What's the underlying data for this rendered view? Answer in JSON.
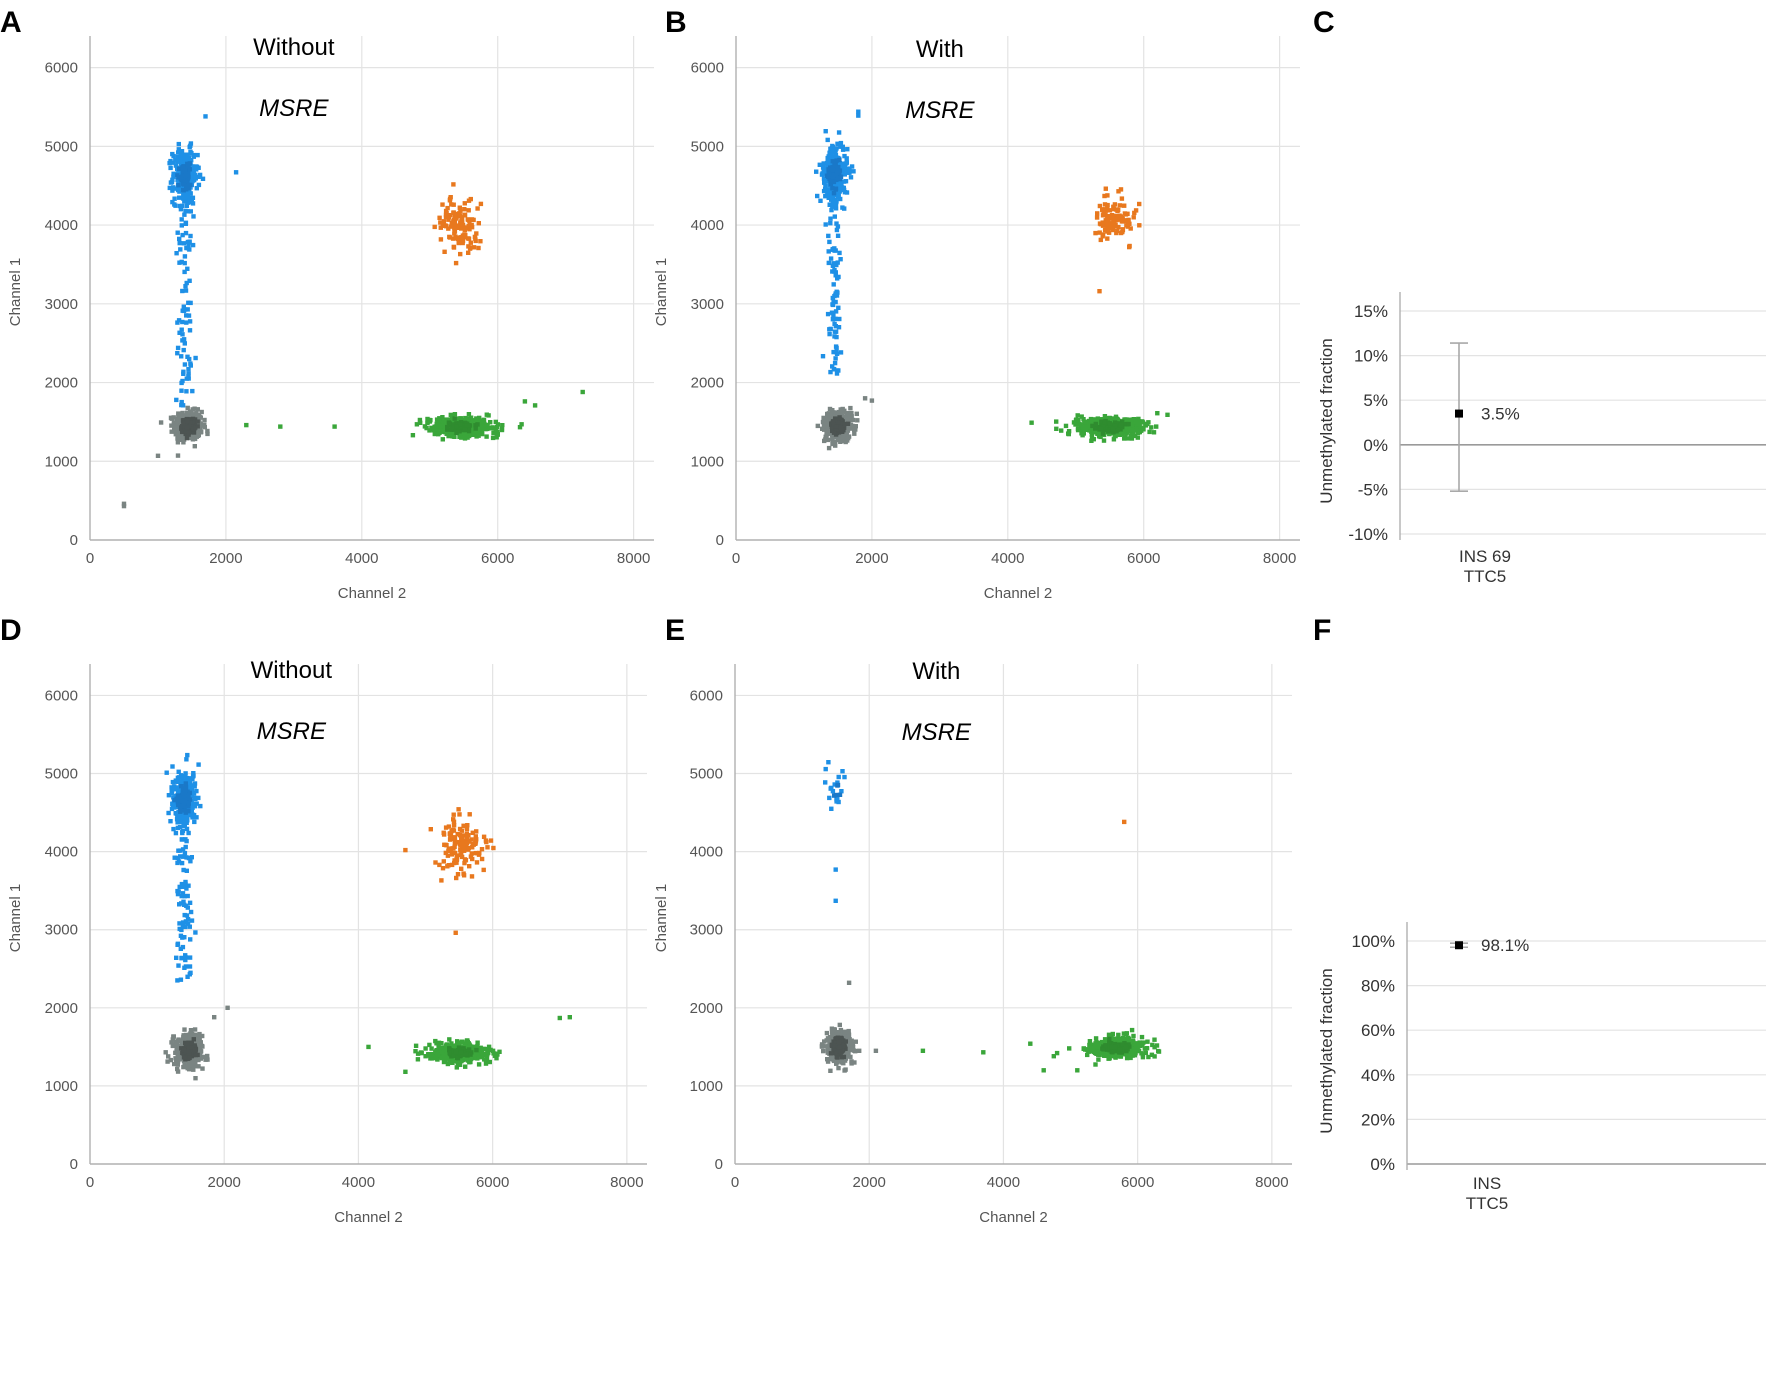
{
  "colors": {
    "ch1_positive": "#1e90e6",
    "double_positive": "#e8781e",
    "ch2_positive": "#3aa63a",
    "negative": "#7a8482",
    "negative_core": "#4d5452",
    "fraction_marker": "#000000",
    "error_bar": "#a9a9a9"
  },
  "chart_data": [
    {
      "panel": "A",
      "type": "scatter",
      "annotation_top": "Without",
      "annotation_italic": "MSRE",
      "xlabel": "Channel 2",
      "ylabel": "Channel 1",
      "xlim": [
        0,
        8300
      ],
      "ylim": [
        0,
        6300
      ],
      "xticks": [
        "0",
        "2000",
        "4000",
        "6000",
        "8000"
      ],
      "yticks": [
        "0",
        "1000",
        "2000",
        "3000",
        "4000",
        "5000",
        "6000"
      ],
      "clusters": [
        {
          "name": "negative",
          "center": [
            1450,
            1450
          ],
          "spread": [
            100,
            90
          ],
          "count": 420
        },
        {
          "name": "ch1_positive",
          "center": [
            1400,
            4620
          ],
          "spread": [
            90,
            170
          ],
          "count": 260,
          "tail_to": 1700
        },
        {
          "name": "double_positive",
          "center": [
            5450,
            3990
          ],
          "spread": [
            160,
            170
          ],
          "count": 130
        },
        {
          "name": "ch2_positive",
          "center": [
            5450,
            1440
          ],
          "spread": [
            230,
            60
          ],
          "count": 420
        }
      ],
      "outliers": [
        {
          "cluster": "ch1_positive",
          "x": 1700,
          "y": 5380
        },
        {
          "cluster": "ch1_positive",
          "x": 2150,
          "y": 4670
        },
        {
          "cluster": "ch2_positive",
          "x": 2300,
          "y": 1460
        },
        {
          "cluster": "ch2_positive",
          "x": 2800,
          "y": 1440
        },
        {
          "cluster": "ch2_positive",
          "x": 3600,
          "y": 1440
        },
        {
          "cluster": "ch2_positive",
          "x": 6400,
          "y": 1760
        },
        {
          "cluster": "ch2_positive",
          "x": 6550,
          "y": 1710
        },
        {
          "cluster": "ch2_positive",
          "x": 7250,
          "y": 1880
        },
        {
          "cluster": "negative",
          "x": 1000,
          "y": 1070
        },
        {
          "cluster": "negative",
          "x": 500,
          "y": 430
        },
        {
          "cluster": "negative",
          "x": 500,
          "y": 460
        }
      ]
    },
    {
      "panel": "B",
      "type": "scatter",
      "annotation_top": "With",
      "annotation_italic": "MSRE",
      "xlabel": "Channel 2",
      "ylabel": "Channel 1",
      "xlim": [
        0,
        8300
      ],
      "ylim": [
        0,
        6300
      ],
      "xticks": [
        "0",
        "2000",
        "4000",
        "6000",
        "8000"
      ],
      "yticks": [
        "0",
        "1000",
        "2000",
        "3000",
        "4000",
        "5000",
        "6000"
      ],
      "clusters": [
        {
          "name": "negative",
          "center": [
            1500,
            1450
          ],
          "spread": [
            100,
            90
          ],
          "count": 380
        },
        {
          "name": "ch1_positive",
          "center": [
            1450,
            4640
          ],
          "spread": [
            90,
            170
          ],
          "count": 260,
          "tail_to": 2100
        },
        {
          "name": "double_positive",
          "center": [
            5550,
            4070
          ],
          "spread": [
            150,
            160
          ],
          "count": 120
        },
        {
          "name": "ch2_positive",
          "center": [
            5500,
            1440
          ],
          "spread": [
            230,
            60
          ],
          "count": 420
        }
      ],
      "outliers": [
        {
          "cluster": "ch1_positive",
          "x": 1800,
          "y": 5440
        },
        {
          "cluster": "ch1_positive",
          "x": 1800,
          "y": 5390
        },
        {
          "cluster": "negative",
          "x": 2000,
          "y": 1770
        },
        {
          "cluster": "negative",
          "x": 1900,
          "y": 1800
        },
        {
          "cluster": "ch2_positive",
          "x": 4350,
          "y": 1490
        },
        {
          "cluster": "ch2_positive",
          "x": 6200,
          "y": 1610
        },
        {
          "cluster": "ch2_positive",
          "x": 6350,
          "y": 1590
        },
        {
          "cluster": "double_positive",
          "x": 5350,
          "y": 3160
        }
      ]
    },
    {
      "panel": "C",
      "type": "scatter",
      "ylabel": "Unmethylated fraction",
      "yticks": [
        "15%",
        "10%",
        "5%",
        "0%",
        "-5%",
        "-10%"
      ],
      "ylim": [
        -11.5,
        17
      ],
      "categories": [
        "INS 69",
        "TTC5"
      ],
      "points": [
        {
          "value": 3.5,
          "label": "3.5%",
          "error_low": -5.2,
          "error_high": 11.4
        }
      ]
    },
    {
      "panel": "D",
      "type": "scatter",
      "annotation_top": "Without",
      "annotation_italic": "MSRE",
      "xlabel": "Channel 2",
      "ylabel": "Channel 1",
      "xlim": [
        0,
        8300
      ],
      "ylim": [
        0,
        6300
      ],
      "xticks": [
        "0",
        "2000",
        "4000",
        "6000",
        "8000"
      ],
      "yticks": [
        "0",
        "1000",
        "2000",
        "3000",
        "4000",
        "5000",
        "6000"
      ],
      "clusters": [
        {
          "name": "negative",
          "center": [
            1480,
            1460
          ],
          "spread": [
            100,
            100
          ],
          "count": 400
        },
        {
          "name": "ch1_positive",
          "center": [
            1400,
            4680
          ],
          "spread": [
            90,
            170
          ],
          "count": 270,
          "tail_to": 2350
        },
        {
          "name": "double_positive",
          "center": [
            5550,
            4070
          ],
          "spread": [
            170,
            170
          ],
          "count": 140
        },
        {
          "name": "ch2_positive",
          "center": [
            5500,
            1430
          ],
          "spread": [
            230,
            60
          ],
          "count": 420
        }
      ],
      "outliers": [
        {
          "cluster": "double_positive",
          "x": 4700,
          "y": 4020
        },
        {
          "cluster": "negative",
          "x": 2050,
          "y": 2000
        },
        {
          "cluster": "negative",
          "x": 1850,
          "y": 1880
        },
        {
          "cluster": "ch2_positive",
          "x": 4150,
          "y": 1500
        },
        {
          "cluster": "ch2_positive",
          "x": 7000,
          "y": 1870
        },
        {
          "cluster": "ch2_positive",
          "x": 7150,
          "y": 1880
        },
        {
          "cluster": "ch2_positive",
          "x": 4700,
          "y": 1180
        },
        {
          "cluster": "double_positive",
          "x": 5450,
          "y": 2960
        }
      ]
    },
    {
      "panel": "E",
      "type": "scatter",
      "annotation_top": "With",
      "annotation_italic": "MSRE",
      "xlabel": "Channel 2",
      "ylabel": "Channel 1",
      "xlim": [
        0,
        8300
      ],
      "ylim": [
        0,
        6300
      ],
      "xticks": [
        "0",
        "2000",
        "4000",
        "6000",
        "8000"
      ],
      "yticks": [
        "0",
        "1000",
        "2000",
        "3000",
        "4000",
        "5000",
        "6000"
      ],
      "clusters": [
        {
          "name": "negative",
          "center": [
            1550,
            1500
          ],
          "spread": [
            95,
            100
          ],
          "count": 380
        },
        {
          "name": "ch1_positive",
          "center": [
            1500,
            4780
          ],
          "spread": [
            80,
            120
          ],
          "count": 18
        },
        {
          "name": "ch2_positive",
          "center": [
            5700,
            1490
          ],
          "spread": [
            220,
            65
          ],
          "count": 380
        }
      ],
      "outliers": [
        {
          "cluster": "ch1_positive",
          "x": 1500,
          "y": 3770
        },
        {
          "cluster": "ch1_positive",
          "x": 1500,
          "y": 3370
        },
        {
          "cluster": "negative",
          "x": 1700,
          "y": 2320
        },
        {
          "cluster": "negative",
          "x": 2100,
          "y": 1450
        },
        {
          "cluster": "negative",
          "x": 1850,
          "y": 1450
        },
        {
          "cluster": "double_positive",
          "x": 5800,
          "y": 4380
        },
        {
          "cluster": "ch2_positive",
          "x": 2800,
          "y": 1450
        },
        {
          "cluster": "ch2_positive",
          "x": 3700,
          "y": 1430
        },
        {
          "cluster": "ch2_positive",
          "x": 4400,
          "y": 1540
        },
        {
          "cluster": "ch2_positive",
          "x": 4800,
          "y": 1420
        },
        {
          "cluster": "ch2_positive",
          "x": 4600,
          "y": 1200
        },
        {
          "cluster": "ch2_positive",
          "x": 5100,
          "y": 1200
        },
        {
          "cluster": "ch2_positive",
          "x": 4750,
          "y": 1380
        }
      ]
    },
    {
      "panel": "F",
      "type": "scatter",
      "ylabel": "Unmethylated fraction",
      "yticks": [
        "100%",
        "80%",
        "60%",
        "40%",
        "20%",
        "0%"
      ],
      "ylim": [
        0,
        108
      ],
      "categories": [
        "INS",
        "TTC5"
      ],
      "points": [
        {
          "value": 98.1,
          "label": "98.1%",
          "error_low": 97.2,
          "error_high": 99.0
        }
      ]
    }
  ]
}
